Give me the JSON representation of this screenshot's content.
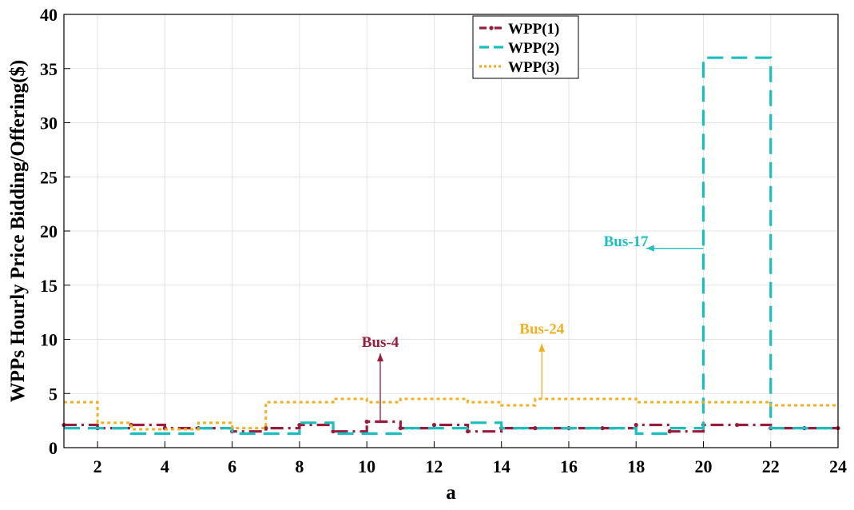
{
  "chart_data": {
    "type": "line",
    "title": "",
    "xlabel": "a",
    "ylabel": "WPPs Hourly Price Bidding/Offering($)",
    "xlim": [
      1,
      24
    ],
    "ylim": [
      0,
      40
    ],
    "xticks": [
      2,
      4,
      6,
      8,
      10,
      12,
      14,
      16,
      18,
      20,
      22,
      24
    ],
    "yticks": [
      0,
      5,
      10,
      15,
      20,
      25,
      30,
      35,
      40
    ],
    "grid": true,
    "legend_position": "top-center",
    "step": "post",
    "x": [
      1,
      2,
      3,
      4,
      5,
      6,
      7,
      8,
      9,
      10,
      11,
      12,
      13,
      14,
      15,
      16,
      17,
      18,
      19,
      20,
      21,
      22,
      23,
      24
    ],
    "series": [
      {
        "name": "WPP(1)",
        "color": "#9b1b3c",
        "style": "dash-dot-marker",
        "values": [
          2.1,
          1.8,
          2.1,
          1.8,
          1.8,
          1.5,
          1.8,
          2.1,
          1.5,
          2.4,
          1.8,
          2.1,
          1.5,
          1.8,
          1.8,
          1.8,
          1.8,
          2.1,
          1.5,
          2.1,
          2.1,
          1.8,
          1.8,
          1.8
        ]
      },
      {
        "name": "WPP(2)",
        "color": "#1bbfbf",
        "style": "dashed",
        "values": [
          1.8,
          1.8,
          1.3,
          1.3,
          1.8,
          1.3,
          1.3,
          2.3,
          1.3,
          1.3,
          1.8,
          1.8,
          2.3,
          1.8,
          1.8,
          1.8,
          1.8,
          1.3,
          1.8,
          36,
          36,
          1.8,
          1.8,
          1.8
        ]
      },
      {
        "name": "WPP(3)",
        "color": "#f0b020",
        "style": "dotted",
        "values": [
          4.2,
          2.3,
          1.7,
          1.7,
          2.3,
          1.8,
          4.2,
          4.2,
          4.5,
          4.2,
          4.5,
          4.5,
          4.2,
          3.9,
          4.5,
          4.5,
          4.5,
          4.2,
          4.2,
          4.2,
          4.2,
          3.9,
          3.9,
          3.9
        ]
      }
    ],
    "annotations": [
      {
        "text": "Bus-4",
        "color": "#9b1b3c",
        "text_x": 10.4,
        "text_y": 9.3,
        "arrow_from": [
          10.4,
          2.4
        ],
        "arrow_to": [
          10.4,
          8.7
        ]
      },
      {
        "text": "Bus-24",
        "color": "#f0b020",
        "text_x": 15.2,
        "text_y": 10.5,
        "arrow_from": [
          15.2,
          4.5
        ],
        "arrow_to": [
          15.2,
          9.6
        ]
      },
      {
        "text": "Bus-17",
        "color": "#1bbfbf",
        "text_x": 17.7,
        "text_y": 18.6,
        "arrow_from": [
          20,
          18.4
        ],
        "arrow_to": [
          18.3,
          18.4
        ]
      }
    ]
  }
}
